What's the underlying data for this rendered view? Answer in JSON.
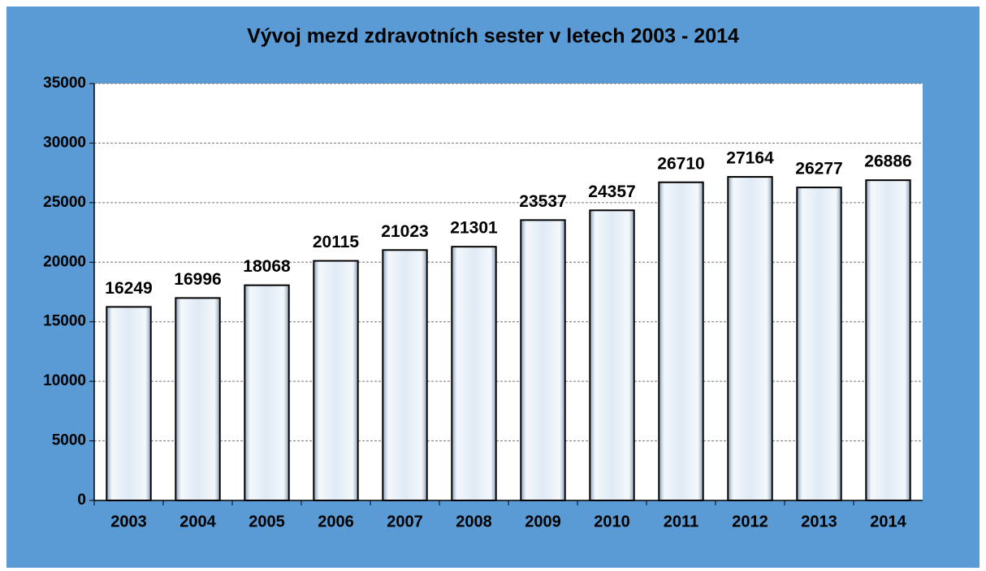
{
  "chart_data": {
    "type": "bar",
    "title": "Vývoj mezd zdravotních sester v letech 2003 - 2014",
    "categories": [
      "2003",
      "2004",
      "2005",
      "2006",
      "2007",
      "2008",
      "2009",
      "2010",
      "2011",
      "2012",
      "2013",
      "2014"
    ],
    "values": [
      16249,
      16996,
      18068,
      20115,
      21023,
      21301,
      23537,
      24357,
      26710,
      27164,
      26277,
      26886
    ],
    "color": "#dde8f4",
    "ylim": [
      0,
      35000
    ],
    "yticks": [
      0,
      5000,
      10000,
      15000,
      20000,
      25000,
      30000,
      35000
    ],
    "grid": true
  }
}
